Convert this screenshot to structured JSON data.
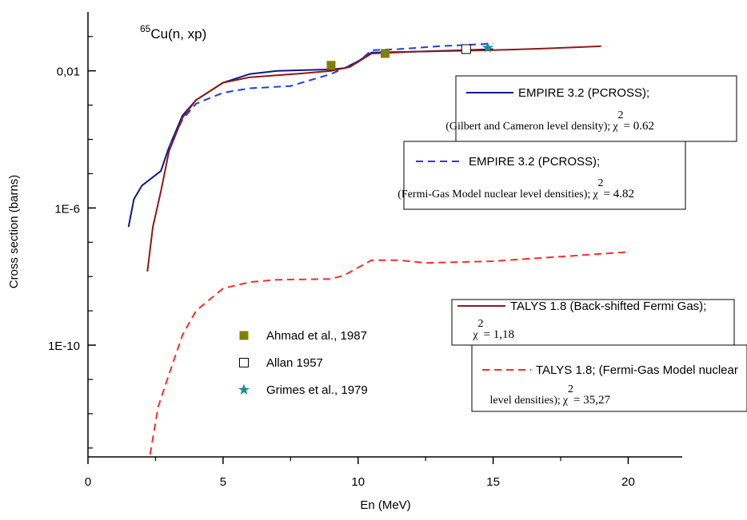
{
  "chart_data": {
    "type": "line",
    "title_prefix": "65",
    "title": "Cu(n, xp)",
    "xlabel": "En (MeV)",
    "ylabel": "Cross section (barns)",
    "xlim": [
      0,
      22
    ],
    "xticks": [
      0,
      5,
      10,
      15,
      20
    ],
    "xminor_ticks": [
      2.5,
      7.5,
      12.5,
      17.5
    ],
    "ylim": [
      5.5e-14,
      0.52
    ],
    "log_y": true,
    "yticks": [
      {
        "value": 0.01,
        "label": "0,01"
      },
      {
        "value": 1e-06,
        "label": "1E-6"
      },
      {
        "value": 1e-10,
        "label": "1E-10"
      }
    ],
    "yminor_ticks": [
      0.1,
      0.001,
      0.0001,
      1e-05,
      1e-07,
      1e-08,
      1e-09,
      1e-11,
      1e-12,
      1e-13
    ],
    "chi_symbol": "χ",
    "chi_exponent": "2",
    "series": [
      {
        "name": "EMPIRE 3.2 (PCROSS);",
        "note": "(Gilbert and Cameron level density);",
        "chi2": "= 0.62",
        "color": "#0a1a8c",
        "dash": false,
        "x": [
          1.5,
          1.7,
          2.0,
          2.7,
          3.0,
          3.5,
          4.0,
          5.0,
          6.0,
          7.0,
          9.0,
          9.5,
          10.0,
          10.5,
          12.0,
          14.0,
          15.0
        ],
        "values": [
          2.8e-07,
          1.8e-06,
          4.5e-06,
          1.2e-05,
          5.9e-05,
          0.0005,
          0.0014,
          0.0045,
          0.0081,
          0.01,
          0.011,
          0.012,
          0.019,
          0.034,
          0.036,
          0.04,
          0.043
        ]
      },
      {
        "name": "EMPIRE 3.2 (PCROSS);",
        "note": "(Fermi-Gas Model nuclear level densities);",
        "chi2": "= 4.82",
        "color": "#1f3fe0",
        "dash": true,
        "x": [
          3.0,
          3.5,
          4.0,
          5.0,
          6.0,
          7.5,
          9.0,
          10.0,
          10.5,
          11.5,
          13.0,
          15.0
        ],
        "values": [
          5.9e-05,
          0.00038,
          0.0011,
          0.0023,
          0.0031,
          0.0036,
          0.0081,
          0.018,
          0.04,
          0.043,
          0.052,
          0.062
        ]
      },
      {
        "name": "TALYS 1.8 (Back-shifted Fermi Gas);",
        "note": "",
        "chi2": "= 1,18",
        "color": "#8b1a1a",
        "dash": false,
        "x": [
          2.2,
          2.4,
          2.7,
          3.0,
          3.5,
          4.0,
          5.0,
          6.0,
          8.0,
          9.0,
          9.7,
          10.5,
          12.0,
          15.0,
          17.0,
          19.0
        ],
        "values": [
          1.4e-08,
          2.8e-07,
          3.1e-06,
          4.5e-05,
          0.00043,
          0.0014,
          0.0045,
          0.0065,
          0.0085,
          0.01,
          0.013,
          0.032,
          0.036,
          0.04,
          0.045,
          0.052
        ]
      },
      {
        "name": "TALYS 1.8; (Fermi-Gas Model nuclear",
        "note": "level densities);",
        "chi2": "= 35,27",
        "color": "#ff2a2a",
        "dash": true,
        "x": [
          2.3,
          2.6,
          3.0,
          3.5,
          4.0,
          5.0,
          6.0,
          7.0,
          9.0,
          9.5,
          10.5,
          11.5,
          12.5,
          15.0,
          20.0
        ],
        "values": [
          6.5e-14,
          1.6e-12,
          1.4e-11,
          2e-10,
          1e-09,
          4.5e-09,
          6.9e-09,
          8.1e-09,
          8.5e-09,
          1.1e-08,
          3e-08,
          3e-08,
          2.5e-08,
          2.8e-08,
          5.2e-08
        ]
      }
    ],
    "points": [
      {
        "name": "Ahmad et al., 1987",
        "marker": "square",
        "color": "#808000",
        "x": [
          9.0,
          11.0
        ],
        "values": [
          0.0145,
          0.032
        ]
      },
      {
        "name": "Allan 1957",
        "marker": "open-square",
        "color": "#000000",
        "x": [
          14.0
        ],
        "values": [
          0.043
        ]
      },
      {
        "name": "Grimes et al., 1979",
        "marker": "star",
        "color": "#1a8f8f",
        "x": [
          14.8
        ],
        "values": [
          0.047
        ]
      }
    ]
  }
}
